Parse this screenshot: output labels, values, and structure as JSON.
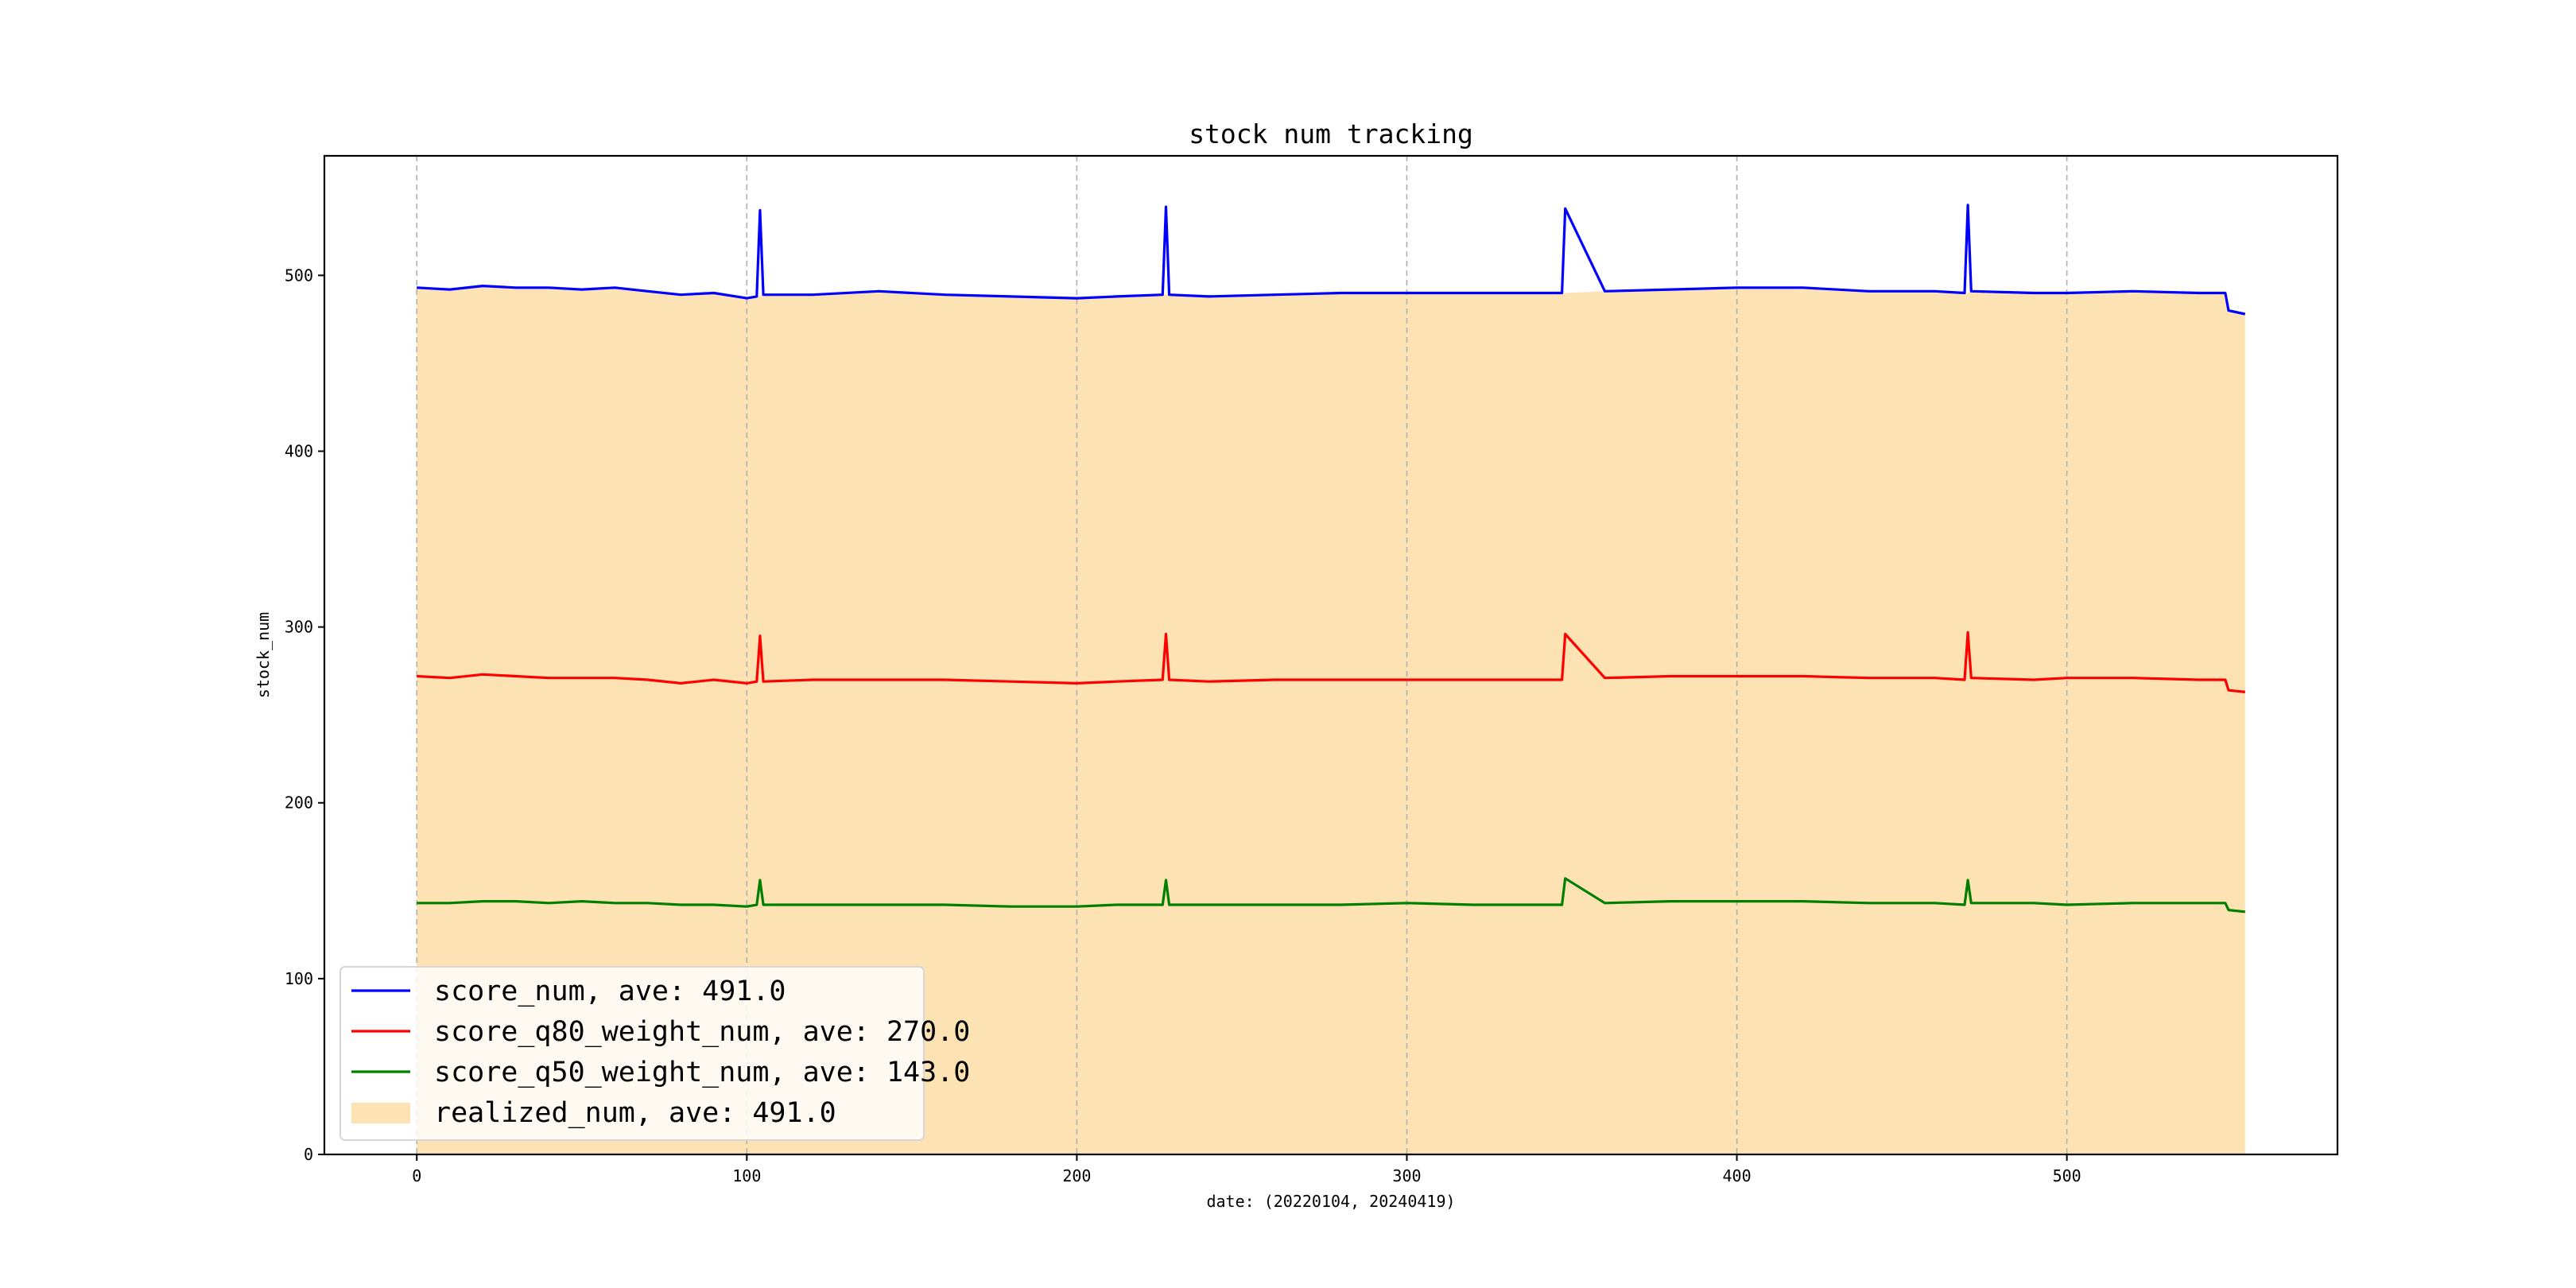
{
  "chart_data": {
    "type": "line",
    "title": "stock num tracking",
    "xlabel": "date: (20220104, 20240419)",
    "ylabel": "stock_num",
    "xlim": [
      -28,
      582
    ],
    "ylim": [
      0,
      568
    ],
    "xticks": [
      0,
      100,
      200,
      300,
      400,
      500
    ],
    "yticks": [
      0,
      100,
      200,
      300,
      400,
      500
    ],
    "grid": {
      "vertical": true,
      "horizontal": false,
      "style": "dashed"
    },
    "legend_position": "lower-left",
    "x_points": [
      0,
      10,
      20,
      30,
      40,
      50,
      60,
      70,
      80,
      90,
      100,
      103,
      104,
      105,
      120,
      140,
      160,
      180,
      200,
      212,
      226,
      227,
      228,
      240,
      260,
      280,
      300,
      320,
      340,
      346,
      347,
      348,
      360,
      380,
      400,
      420,
      440,
      460,
      469,
      470,
      471,
      490,
      500,
      520,
      540,
      548,
      549,
      554
    ],
    "series": [
      {
        "name": "score_num",
        "legend_label": "score_num, ave: 491.0",
        "color": "#0000ff",
        "kind": "line",
        "values": [
          493,
          492,
          494,
          493,
          493,
          492,
          493,
          491,
          489,
          490,
          487,
          488,
          537,
          489,
          489,
          491,
          489,
          488,
          487,
          488,
          489,
          539,
          489,
          488,
          489,
          490,
          490,
          490,
          490,
          490,
          490,
          538,
          491,
          492,
          493,
          493,
          491,
          491,
          490,
          540,
          491,
          490,
          490,
          491,
          490,
          490,
          480,
          478
        ]
      },
      {
        "name": "score_q80_weight_num",
        "legend_label": "score_q80_weight_num, ave: 270.0",
        "color": "#ff0000",
        "kind": "line",
        "values": [
          272,
          271,
          273,
          272,
          271,
          271,
          271,
          270,
          268,
          270,
          268,
          269,
          295,
          269,
          270,
          270,
          270,
          269,
          268,
          269,
          270,
          296,
          270,
          269,
          270,
          270,
          270,
          270,
          270,
          270,
          270,
          296,
          271,
          272,
          272,
          272,
          271,
          271,
          270,
          297,
          271,
          270,
          271,
          271,
          270,
          270,
          264,
          263
        ]
      },
      {
        "name": "score_q50_weight_num",
        "legend_label": "score_q50_weight_num, ave: 143.0",
        "color": "#008000",
        "kind": "line",
        "values": [
          143,
          143,
          144,
          144,
          143,
          144,
          143,
          143,
          142,
          142,
          141,
          142,
          156,
          142,
          142,
          142,
          142,
          141,
          141,
          142,
          142,
          156,
          142,
          142,
          142,
          142,
          143,
          142,
          142,
          142,
          142,
          157,
          143,
          144,
          144,
          144,
          143,
          143,
          142,
          156,
          143,
          143,
          142,
          143,
          143,
          143,
          139,
          138
        ]
      },
      {
        "name": "realized_num",
        "legend_label": "realized_num, ave: 491.0",
        "color": "#fde2b3",
        "kind": "area",
        "values": [
          493,
          492,
          494,
          493,
          493,
          492,
          493,
          491,
          489,
          490,
          487,
          488,
          488,
          489,
          489,
          491,
          489,
          488,
          487,
          488,
          489,
          489,
          489,
          488,
          489,
          490,
          490,
          490,
          490,
          490,
          490,
          490,
          491,
          492,
          493,
          493,
          491,
          491,
          490,
          490,
          491,
          490,
          490,
          491,
          490,
          490,
          480,
          478
        ]
      }
    ]
  }
}
